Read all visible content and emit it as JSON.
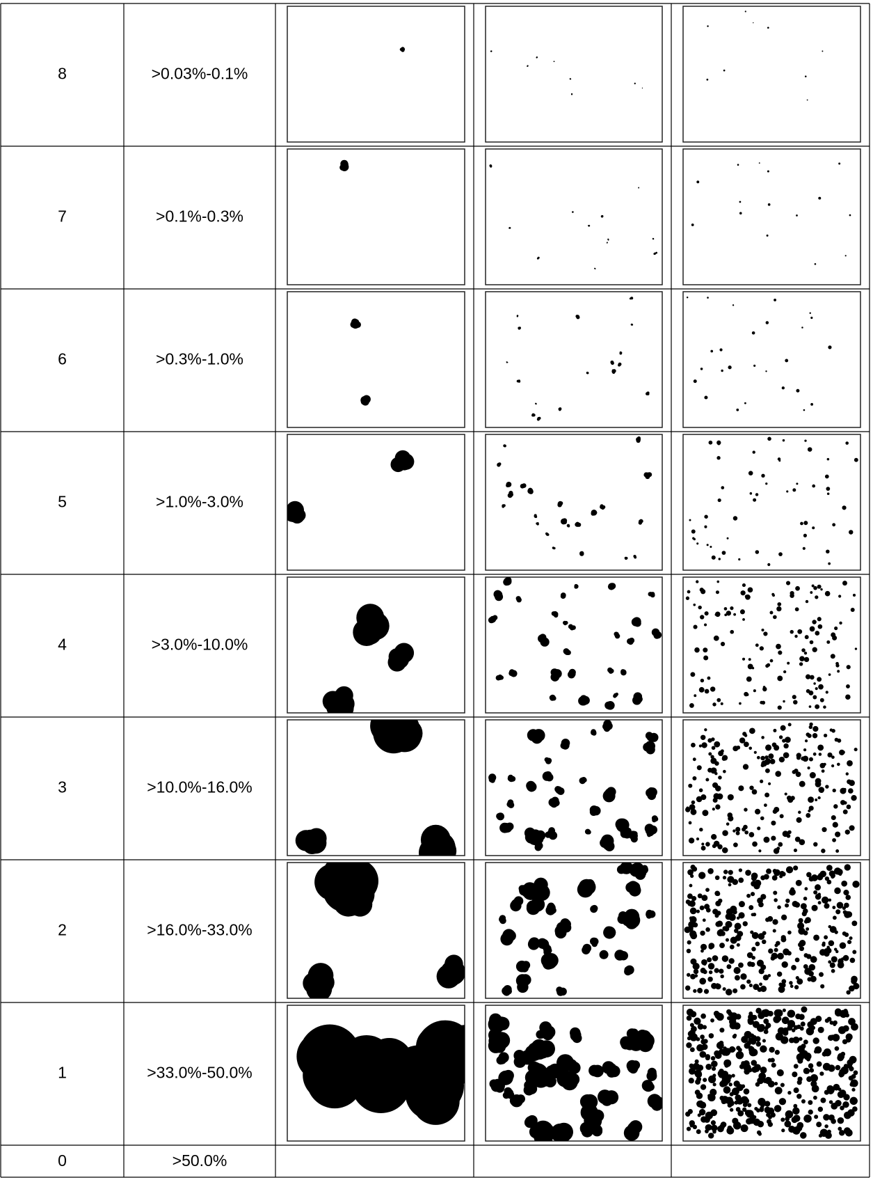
{
  "table": {
    "rows": [
      [
        "8",
        ">0.03%-0.1%"
      ],
      [
        "7",
        ">0.1%-0.3%"
      ],
      [
        "6",
        ">0.3%-1.0%"
      ],
      [
        "5",
        ">1.0%-3.0%"
      ],
      [
        "4",
        ">3.0%-10.0%"
      ],
      [
        "3",
        ">10.0%-16.0%"
      ],
      [
        "2",
        ">16.0%-33.0%"
      ],
      [
        "1",
        ">33.0%-50.0%"
      ],
      [
        "0",
        ">50.0%"
      ]
    ]
  }
}
